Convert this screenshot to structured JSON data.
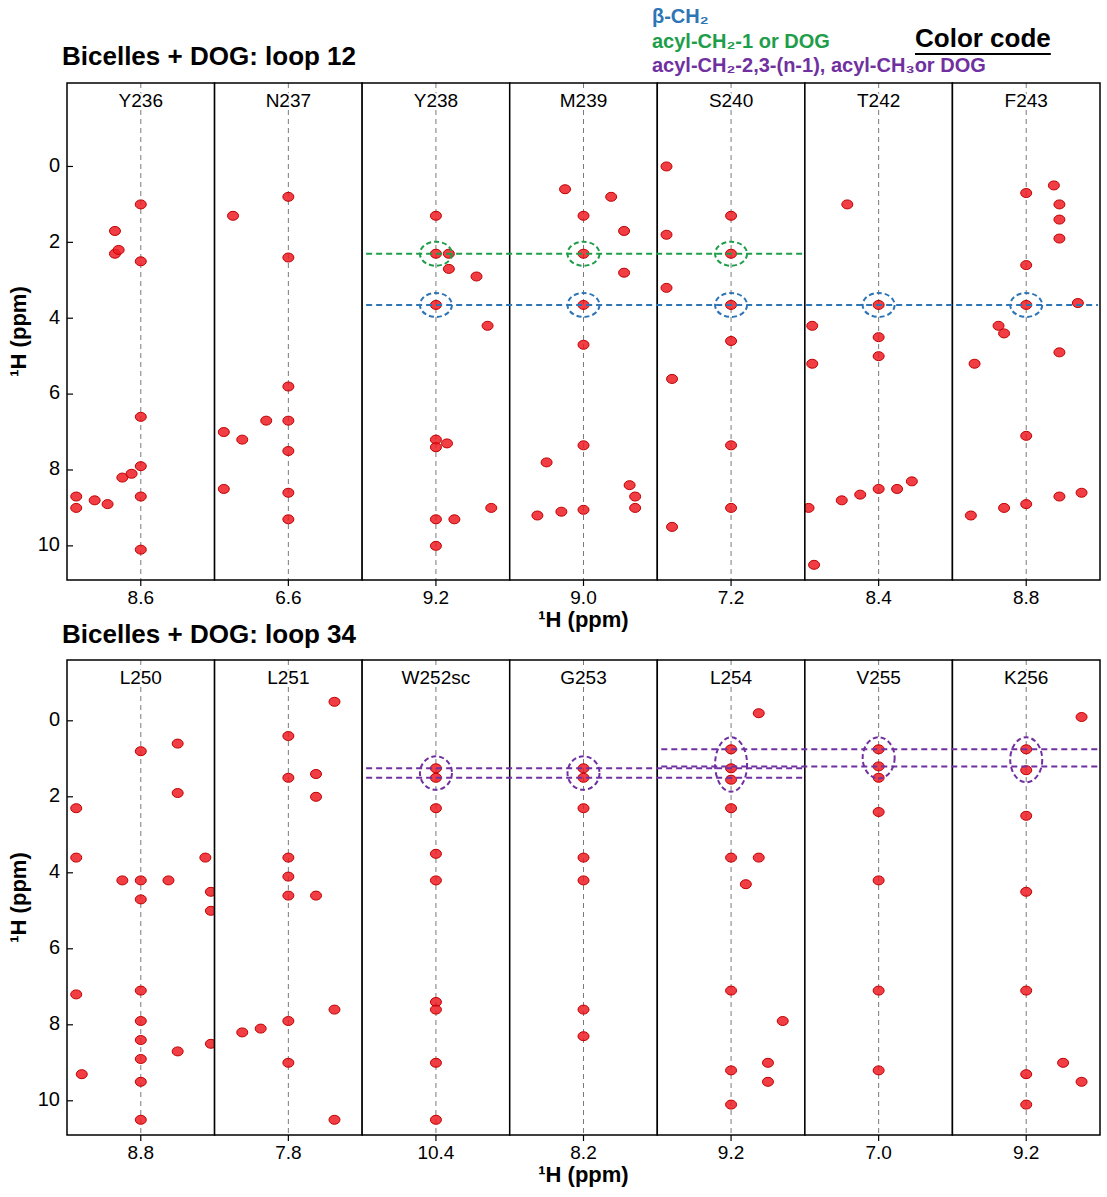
{
  "color_code": {
    "title": "Color code",
    "items": [
      {
        "label": "β-CH₂",
        "color": "#2e75b6"
      },
      {
        "label": "acyl-CH₂-1 or DOG",
        "color": "#1e9e4a"
      },
      {
        "label": "acyl-CH₂-2,3-(n-1), acyl-CH₃or DOG",
        "color": "#7030a0"
      }
    ]
  },
  "chart_data": [
    {
      "type": "scatter",
      "title": "Bicelles + DOG: loop 12",
      "x_label": "¹H (ppm)",
      "y_label": "¹H (ppm)",
      "ylim": [
        -2.2,
        10.9
      ],
      "yticks": [
        0,
        2,
        4,
        6,
        8,
        10
      ],
      "color": "#ee1c25",
      "strips": [
        {
          "label": "Y236",
          "xlim": [
            9.0,
            8.2
          ],
          "xticks": [
            8.6
          ],
          "peaks": {
            "x": [
              8.6,
              8.6,
              8.6,
              8.6,
              8.6,
              8.6,
              8.74,
              8.74,
              8.72,
              8.95,
              8.85,
              8.7,
              8.65,
              8.95,
              8.78
            ],
            "y": [
              1.0,
              2.5,
              6.6,
              7.9,
              8.7,
              10.1,
              1.7,
              2.3,
              2.2,
              8.7,
              8.8,
              8.2,
              8.1,
              9.0,
              8.9
            ]
          }
        },
        {
          "label": "N237",
          "xlim": [
            7.0,
            6.2
          ],
          "xticks": [
            6.6
          ],
          "peaks": {
            "x": [
              6.6,
              6.6,
              6.6,
              6.6,
              6.6,
              6.6,
              6.95,
              6.85,
              6.95,
              6.9,
              6.72,
              6.6
            ],
            "y": [
              2.4,
              5.8,
              6.7,
              7.5,
              8.6,
              9.3,
              7.0,
              7.2,
              8.5,
              1.3,
              6.7,
              0.8
            ]
          }
        },
        {
          "label": "Y238",
          "xlim": [
            9.6,
            8.8
          ],
          "xticks": [
            9.2
          ],
          "peaks": {
            "x": [
              9.2,
              9.2,
              9.2,
              9.2,
              9.2,
              9.2,
              9.2,
              9.13,
              9.13,
              8.98,
              8.92,
              9.1,
              8.9,
              9.14
            ],
            "y": [
              1.3,
              2.3,
              3.65,
              7.2,
              7.4,
              9.3,
              10.0,
              2.3,
              2.7,
              2.9,
              4.2,
              9.3,
              9.0,
              7.3
            ]
          }
        },
        {
          "label": "M239",
          "xlim": [
            9.4,
            8.6
          ],
          "xticks": [
            {
              "value": 9.0,
              "label": "9.0"
            }
          ],
          "peaks": {
            "x": [
              9.0,
              9.0,
              9.0,
              9.0,
              9.0,
              9.0,
              9.1,
              8.85,
              8.78,
              8.78,
              9.25,
              9.12,
              8.72,
              8.72,
              8.75,
              9.2
            ],
            "y": [
              1.3,
              2.3,
              3.65,
              4.7,
              7.35,
              9.05,
              0.6,
              0.8,
              1.7,
              2.8,
              9.2,
              9.1,
              8.7,
              9.0,
              8.4,
              7.8
            ]
          }
        },
        {
          "label": "S240",
          "xlim": [
            7.6,
            6.8
          ],
          "xticks": [
            7.2
          ],
          "peaks": {
            "x": [
              7.2,
              7.2,
              7.2,
              7.2,
              7.2,
              7.2,
              7.55,
              7.55,
              7.52,
              7.52,
              7.55
            ],
            "y": [
              1.3,
              2.3,
              3.65,
              4.6,
              7.35,
              9.0,
              0.0,
              3.2,
              5.6,
              9.5,
              1.8
            ]
          }
        },
        {
          "label": "T242",
          "xlim": [
            8.8,
            8.0
          ],
          "xticks": [
            8.4
          ],
          "peaks": {
            "x": [
              8.4,
              8.4,
              8.4,
              8.4,
              8.76,
              8.78,
              8.6,
              8.5,
              8.3,
              8.22,
              8.57,
              8.76,
              8.75
            ],
            "y": [
              3.65,
              4.5,
              5.0,
              8.5,
              4.2,
              9.0,
              8.8,
              8.65,
              8.5,
              8.3,
              1.0,
              5.2,
              10.5
            ]
          }
        },
        {
          "label": "F243",
          "xlim": [
            9.2,
            8.4
          ],
          "xticks": [
            8.8
          ],
          "peaks": {
            "x": [
              8.8,
              8.8,
              8.8,
              8.8,
              8.8,
              8.95,
              8.92,
              8.65,
              8.62,
              8.62,
              8.62,
              8.52,
              9.1,
              8.92,
              8.62,
              8.5,
              8.62,
              9.08
            ],
            "y": [
              0.7,
              3.65,
              7.1,
              8.9,
              2.6,
              4.2,
              4.4,
              0.5,
              1.0,
              1.9,
              1.4,
              3.6,
              9.2,
              9.0,
              8.7,
              8.6,
              4.9,
              5.2
            ]
          }
        }
      ],
      "lines": [
        {
          "color": "#1e9e4a",
          "y": 2.3,
          "from": "Y238",
          "to": "S240"
        },
        {
          "color": "#2e75b6",
          "y": 3.65,
          "from": "Y238",
          "to": "F243"
        }
      ],
      "circles": [
        {
          "strip": "Y238",
          "color": "#1e9e4a",
          "y": [
            2.3,
            2.3
          ]
        },
        {
          "strip": "M239",
          "color": "#1e9e4a",
          "y": [
            2.3,
            2.3
          ]
        },
        {
          "strip": "S240",
          "color": "#1e9e4a",
          "y": [
            2.3,
            2.3
          ]
        },
        {
          "strip": "Y238",
          "color": "#2e75b6",
          "y": [
            3.65,
            3.65
          ]
        },
        {
          "strip": "M239",
          "color": "#2e75b6",
          "y": [
            3.65,
            3.65
          ]
        },
        {
          "strip": "S240",
          "color": "#2e75b6",
          "y": [
            3.65,
            3.65
          ]
        },
        {
          "strip": "T242",
          "color": "#2e75b6",
          "y": [
            3.65,
            3.65
          ]
        },
        {
          "strip": "F243",
          "color": "#2e75b6",
          "y": [
            3.65,
            3.65
          ]
        }
      ]
    },
    {
      "type": "scatter",
      "title": "Bicelles + DOG: loop 34",
      "x_label": "¹H (ppm)",
      "y_label": "¹H (ppm)",
      "ylim": [
        -1.6,
        10.9
      ],
      "yticks": [
        0,
        2,
        4,
        6,
        8,
        10
      ],
      "color": "#ee1c25",
      "strips": [
        {
          "label": "L250",
          "xlim": [
            9.2,
            8.4
          ],
          "xticks": [
            8.8
          ],
          "peaks": {
            "x": [
              8.8,
              8.8,
              8.8,
              8.8,
              8.8,
              8.8,
              8.8,
              8.8,
              8.8,
              9.15,
              9.15,
              9.15,
              9.12,
              8.9,
              8.65,
              8.6,
              8.6,
              8.6,
              8.45,
              8.42,
              8.42,
              8.42
            ],
            "y": [
              0.8,
              4.2,
              4.7,
              7.1,
              7.9,
              8.4,
              8.9,
              9.5,
              10.5,
              2.3,
              3.6,
              7.2,
              9.3,
              4.2,
              4.2,
              0.6,
              1.9,
              8.7,
              3.6,
              4.5,
              5.0,
              8.5
            ]
          }
        },
        {
          "label": "L251",
          "xlim": [
            8.2,
            7.4
          ],
          "xticks": [
            7.8
          ],
          "peaks": {
            "x": [
              7.8,
              7.8,
              7.8,
              7.8,
              7.8,
              7.8,
              7.8,
              8.05,
              7.95,
              7.65,
              7.65,
              7.65,
              7.55,
              7.55,
              7.55
            ],
            "y": [
              0.4,
              1.5,
              3.6,
              4.1,
              4.6,
              7.9,
              9.0,
              8.2,
              8.1,
              1.4,
              2.0,
              4.6,
              7.6,
              10.5,
              -0.5
            ]
          }
        },
        {
          "label": "W252sc",
          "xlim": [
            10.8,
            10.0
          ],
          "xticks": [
            10.4
          ],
          "peaks": {
            "x": [
              10.4,
              10.4,
              10.4,
              10.4,
              10.4,
              10.4,
              10.4,
              10.4,
              10.4
            ],
            "y": [
              1.25,
              1.5,
              2.3,
              3.5,
              4.2,
              7.4,
              7.6,
              9.0,
              10.5
            ]
          }
        },
        {
          "label": "G253",
          "xlim": [
            8.6,
            7.8
          ],
          "xticks": [
            8.2
          ],
          "peaks": {
            "x": [
              8.2,
              8.2,
              8.2,
              8.2,
              8.2,
              8.2,
              8.2
            ],
            "y": [
              1.25,
              1.5,
              2.3,
              3.6,
              4.2,
              7.6,
              8.3
            ]
          }
        },
        {
          "label": "L254",
          "xlim": [
            9.6,
            8.8
          ],
          "xticks": [
            9.2
          ],
          "peaks": {
            "x": [
              9.2,
              9.2,
              9.2,
              9.2,
              9.2,
              9.2,
              9.2,
              9.2,
              9.05,
              9.0,
              9.0,
              8.92,
              9.05,
              9.12
            ],
            "y": [
              0.75,
              1.25,
              1.55,
              2.3,
              3.6,
              7.1,
              9.2,
              10.1,
              -0.2,
              9.0,
              9.5,
              7.9,
              3.6,
              4.3
            ]
          }
        },
        {
          "label": "V255",
          "xlim": [
            7.4,
            6.6
          ],
          "xticks": [
            {
              "value": 7.0,
              "label": "7.0"
            }
          ],
          "peaks": {
            "x": [
              7.0,
              7.0,
              7.0,
              7.0,
              7.0,
              7.0,
              7.0
            ],
            "y": [
              0.75,
              1.2,
              1.5,
              2.4,
              4.2,
              7.1,
              9.2
            ]
          }
        },
        {
          "label": "K256",
          "xlim": [
            9.6,
            8.8
          ],
          "xticks": [
            9.2
          ],
          "peaks": {
            "x": [
              9.2,
              9.2,
              9.2,
              9.2,
              9.2,
              9.2,
              9.2,
              8.9,
              9.0,
              8.9
            ],
            "y": [
              0.75,
              1.3,
              2.5,
              4.5,
              7.1,
              9.3,
              10.1,
              -0.1,
              9.0,
              9.5
            ]
          }
        }
      ],
      "lines": [
        {
          "color": "#7030a0",
          "y": 1.25,
          "from": "W252sc",
          "to": "L254"
        },
        {
          "color": "#7030a0",
          "y": 1.5,
          "from": "W252sc",
          "to": "L254"
        },
        {
          "color": "#7030a0",
          "y": 0.75,
          "from": "L254",
          "to": "K256"
        },
        {
          "color": "#7030a0",
          "y": 1.2,
          "from": "L254",
          "to": "K256"
        }
      ],
      "circles": [
        {
          "strip": "W252sc",
          "color": "#7030a0",
          "y": [
            1.25,
            1.5
          ]
        },
        {
          "strip": "G253",
          "color": "#7030a0",
          "y": [
            1.25,
            1.5
          ]
        },
        {
          "strip": "L254",
          "color": "#7030a0",
          "y": [
            0.75,
            1.55
          ]
        },
        {
          "strip": "V255",
          "color": "#7030a0",
          "y": [
            0.75,
            1.2
          ]
        },
        {
          "strip": "K256",
          "color": "#7030a0",
          "y": [
            0.75,
            1.3
          ]
        }
      ]
    }
  ]
}
